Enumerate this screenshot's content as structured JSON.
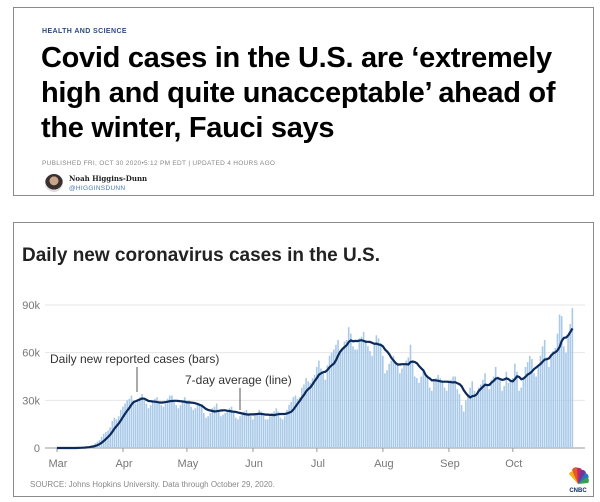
{
  "article": {
    "section": "HEALTH AND SCIENCE",
    "headline": "Covid cases in the U.S. are ‘extremely high and quite unacceptable’ ahead of the winter, Fauci says",
    "published": "PUBLISHED FRI, OCT 30 2020•5:12 PM EDT | UPDATED 4 HOURS AGO",
    "author_name": "Noah Higgins-Dunn",
    "author_handle": "@HIGGINSDUNN"
  },
  "logo": "CNBC",
  "chart_data": {
    "type": "bar",
    "title": "Daily new coronavirus cases in the U.S.",
    "ylim": [
      0,
      90000
    ],
    "yticks": [
      {
        "v": 0,
        "label": "0"
      },
      {
        "v": 30000,
        "label": "30k"
      },
      {
        "v": 60000,
        "label": "60k"
      },
      {
        "v": 90000,
        "label": "90k"
      }
    ],
    "xticks": [
      {
        "day": 0,
        "label": "Mar"
      },
      {
        "day": 31,
        "label": "Apr"
      },
      {
        "day": 61,
        "label": "May"
      },
      {
        "day": 92,
        "label": "Jun"
      },
      {
        "day": 122,
        "label": "Jul"
      },
      {
        "day": 153,
        "label": "Aug"
      },
      {
        "day": 184,
        "label": "Sep"
      },
      {
        "day": 214,
        "label": "Oct"
      }
    ],
    "start_date": "2020-03-01",
    "end_date": "2020-10-29",
    "annotations": {
      "bars": "Daily new reported cases (bars)",
      "line": "7-day average (line)"
    },
    "source": "SOURCE: Johns Hopkins University. Data through October 29, 2020.",
    "units": "thousands of cases",
    "daily_k": [
      0,
      0,
      0,
      0,
      0,
      0,
      0,
      0,
      0,
      0,
      0.3,
      0.4,
      0.5,
      0.6,
      0.8,
      1,
      1.5,
      2,
      3,
      4,
      5,
      7,
      9,
      10,
      11,
      13,
      17,
      19,
      18,
      20,
      24,
      26,
      28,
      30,
      31,
      33,
      30,
      28,
      30,
      32,
      34,
      30,
      28,
      25,
      27,
      29,
      31,
      32,
      29,
      27,
      26,
      28,
      31,
      33,
      33,
      30,
      27,
      25,
      27,
      30,
      32,
      30,
      30,
      26,
      24,
      25,
      27,
      28,
      27,
      22,
      19,
      20,
      22,
      25,
      26,
      28,
      24,
      20,
      21,
      22,
      23,
      25,
      26,
      23,
      19,
      18,
      20,
      21,
      23,
      24,
      22,
      20,
      18,
      21,
      22,
      24,
      23,
      21,
      18,
      18,
      20,
      22,
      23,
      25,
      23,
      19,
      18,
      20,
      24,
      27,
      29,
      32,
      33,
      31,
      32,
      38,
      40,
      44,
      42,
      41,
      44,
      46,
      51,
      55,
      50,
      47,
      43,
      52,
      58,
      60,
      62,
      65,
      68,
      60,
      63,
      67,
      68,
      76,
      72,
      64,
      62,
      62,
      69,
      70,
      73,
      68,
      64,
      61,
      58,
      65,
      71,
      69,
      66,
      58,
      47,
      49,
      53,
      55,
      58,
      54,
      52,
      47,
      50,
      53,
      55,
      57,
      65,
      54,
      45,
      44,
      41,
      45,
      48,
      46,
      44,
      38,
      36,
      42,
      44,
      46,
      44,
      42,
      38,
      36,
      41,
      43,
      45,
      45,
      37,
      34,
      27,
      23,
      30,
      34,
      38,
      42,
      36,
      33,
      38,
      40,
      43,
      47,
      40,
      37,
      43,
      45,
      51,
      45,
      43,
      36,
      39,
      48,
      41,
      43,
      44,
      53,
      48,
      36,
      38,
      44,
      51,
      54,
      58,
      56,
      47,
      45,
      52,
      58,
      64,
      68,
      57,
      51,
      58,
      61,
      63,
      72,
      84,
      83,
      64,
      60,
      70,
      78,
      88
    ],
    "colors": {
      "bars": "#a9c9e8",
      "line": "#0c2a5c"
    }
  }
}
